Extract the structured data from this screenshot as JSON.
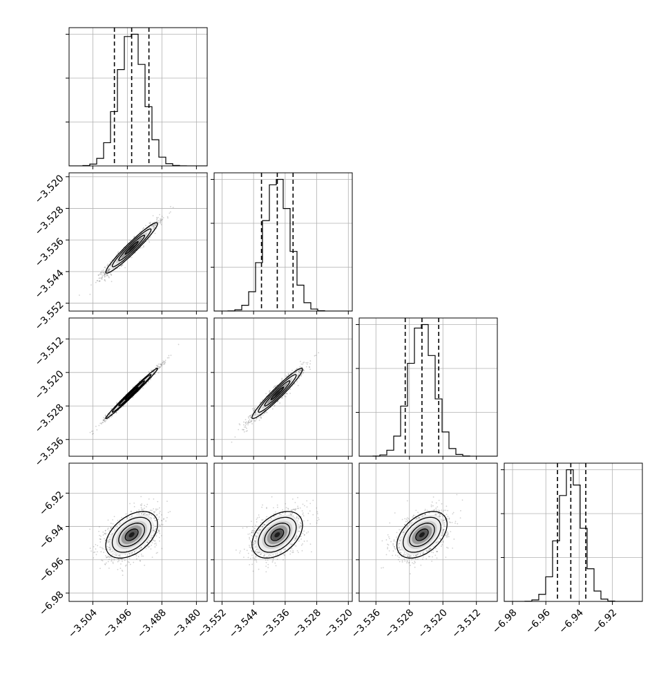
{
  "chart_data": {
    "type": "corner",
    "grid": true,
    "parameters": [
      {
        "range": [
          -3.5095,
          -3.4775
        ],
        "mean": -3.495,
        "sd": 0.003,
        "quantiles": [
          -3.499,
          -3.495,
          -3.491
        ],
        "ticks": [
          -3.504,
          -3.496,
          -3.488,
          -3.48
        ],
        "tick_labels": [
          "−3.504",
          "−3.496",
          "−3.488",
          "−3.480"
        ]
      },
      {
        "range": [
          -3.554,
          -3.519
        ],
        "mean": -3.538,
        "sd": 0.0032,
        "quantiles": [
          -3.542,
          -3.538,
          -3.534
        ],
        "ticks": [
          -3.552,
          -3.544,
          -3.536,
          -3.528,
          -3.52
        ],
        "tick_labels": [
          "−3.552",
          "−3.544",
          "−3.536",
          "−3.528",
          "−3.520"
        ]
      },
      {
        "range": [
          -3.54,
          -3.507
        ],
        "mean": -3.525,
        "sd": 0.003,
        "quantiles": [
          -3.529,
          -3.525,
          -3.521
        ],
        "ticks": [
          -3.536,
          -3.528,
          -3.52,
          -3.512
        ],
        "tick_labels": [
          "−3.536",
          "−3.528",
          "−3.520",
          "−3.512"
        ]
      },
      {
        "range": [
          -6.985,
          -6.902
        ],
        "mean": -6.945,
        "sd": 0.007,
        "quantiles": [
          -6.953,
          -6.945,
          -6.936
        ],
        "ticks": [
          -6.98,
          -6.96,
          -6.94,
          -6.92
        ],
        "tick_labels": [
          "−6.98",
          "−6.96",
          "−6.94",
          "−6.92"
        ]
      }
    ],
    "correlations": [
      [
        1.0,
        0.96,
        0.99,
        0.45
      ],
      [
        0.96,
        1.0,
        0.96,
        0.42
      ],
      [
        0.99,
        0.96,
        1.0,
        0.45
      ],
      [
        0.45,
        0.42,
        0.45,
        1.0
      ]
    ],
    "histogram_bins": 20,
    "contour_levels_sigma": [
      0.5,
      1.0,
      1.5,
      2.0
    ]
  }
}
